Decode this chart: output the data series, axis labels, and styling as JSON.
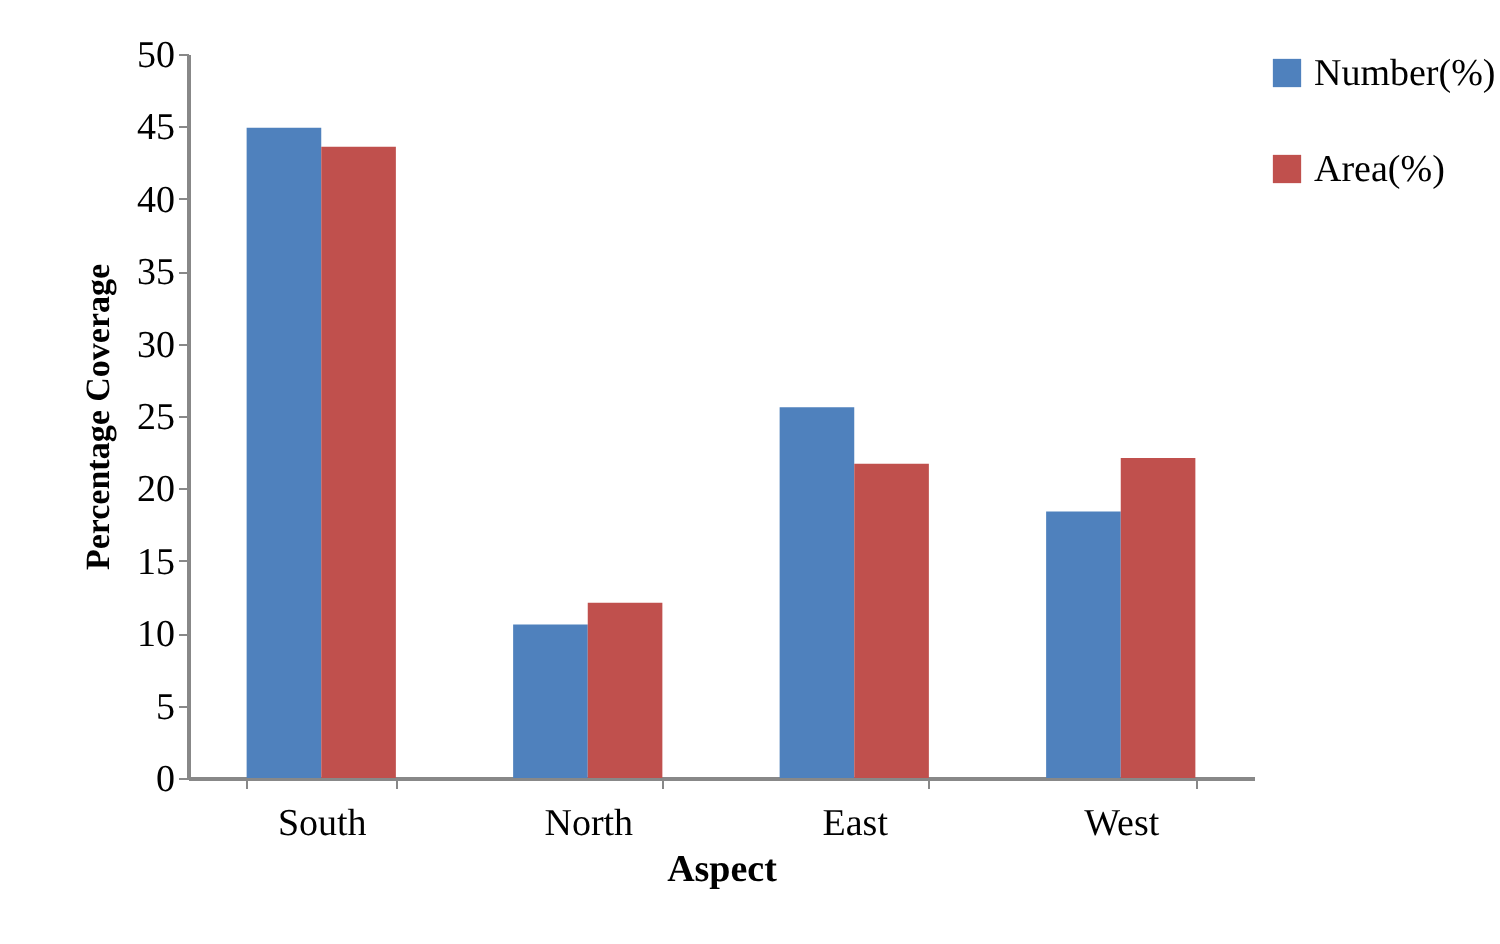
{
  "chart_data": {
    "type": "bar",
    "xlabel": "Aspect",
    "ylabel": "Percentage Coverage",
    "categories": [
      "South",
      "North",
      "East",
      "West"
    ],
    "series": [
      {
        "name": "Number(%)",
        "color": "#4f81bd",
        "values": [
          44.9,
          10.6,
          25.6,
          18.4
        ]
      },
      {
        "name": "Area(%)",
        "color": "#c0504d",
        "values": [
          43.6,
          12.1,
          21.7,
          22.1
        ]
      }
    ],
    "ylim": [
      0,
      50
    ],
    "yticks": [
      0,
      5,
      10,
      15,
      20,
      25,
      30,
      35,
      40,
      45,
      50
    ],
    "grid": false,
    "legend": "top right"
  }
}
